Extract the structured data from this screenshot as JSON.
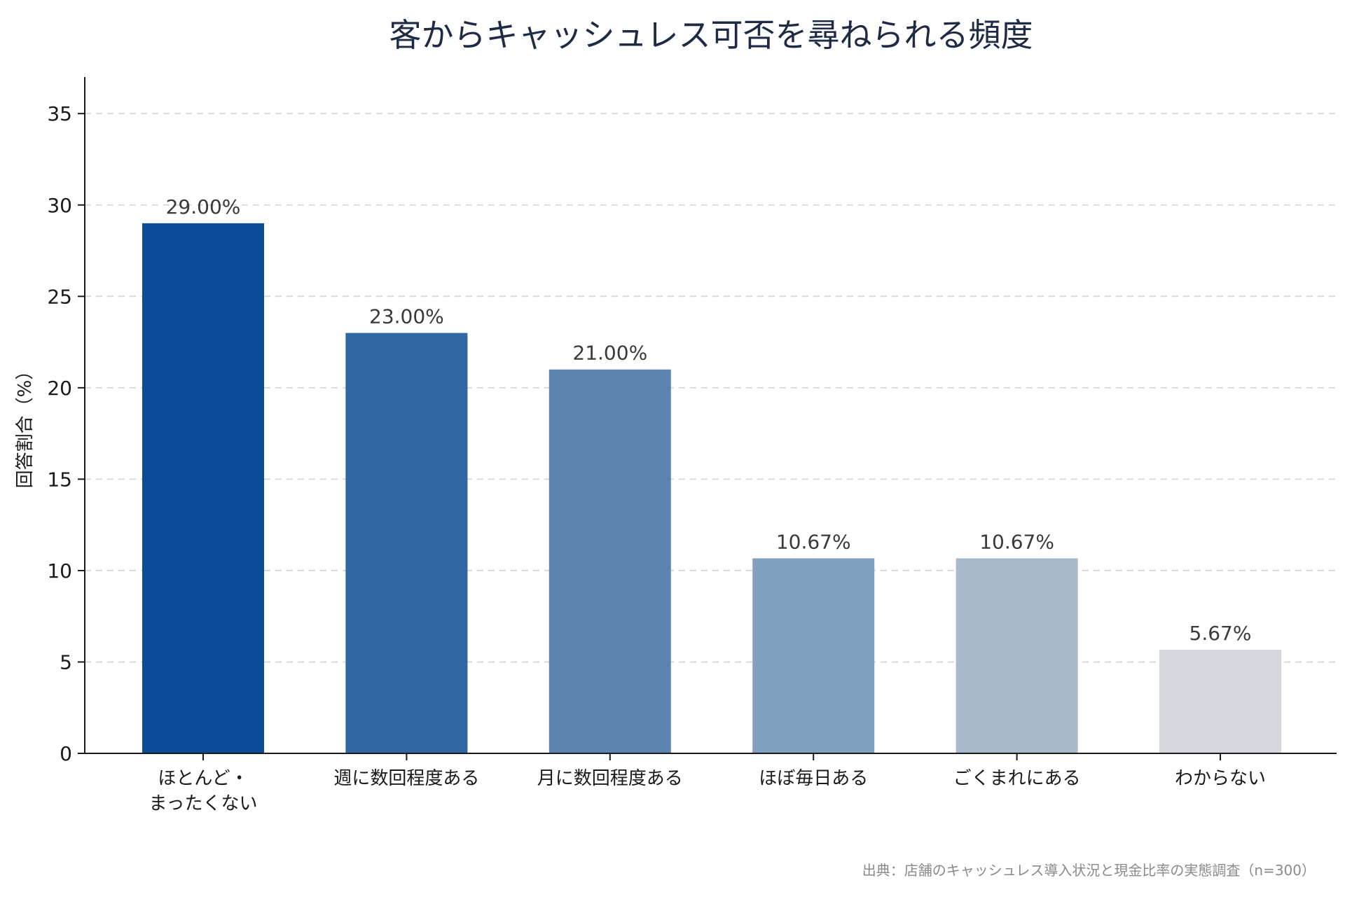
{
  "chart_data": {
    "type": "bar",
    "title": "客からキャッシュレス可否を尋ねられる頻度",
    "xlabel": "",
    "ylabel": "回答割合（%）",
    "categories": [
      [
        "ほとんど・",
        "まったくない"
      ],
      [
        "週に数回程度ある"
      ],
      [
        "月に数回程度ある"
      ],
      [
        "ほぼ毎日ある"
      ],
      [
        "ごくまれにある"
      ],
      [
        "わからない"
      ]
    ],
    "values": [
      29.0,
      23.0,
      21.0,
      10.67,
      10.67,
      5.67
    ],
    "value_labels": [
      "29.00%",
      "23.00%",
      "21.00%",
      "10.67%",
      "10.67%",
      "5.67%"
    ],
    "bar_colors": [
      "#0b4c97",
      "#3066a3",
      "#5b84b1",
      "#82a1c0",
      "#a9b9cc",
      "#d4d8dc"
    ],
    "ylim": [
      0,
      37
    ],
    "yticks": [
      0,
      5,
      10,
      15,
      20,
      25,
      30,
      35
    ],
    "grid": "horizontal-dashed",
    "legend": "none",
    "source_note": "出典：店舗のキャッシュレス導入状況と現金比率の実態調査（n=300）"
  }
}
